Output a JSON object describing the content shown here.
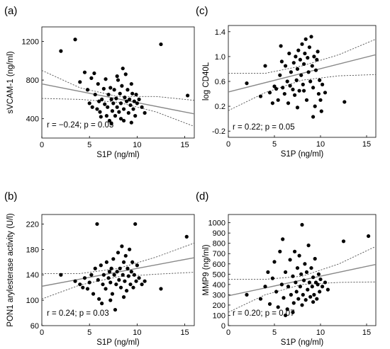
{
  "chart_data": [
    {
      "panel": "(a)",
      "type": "scatter",
      "xlabel": "S1P (ng/ml)",
      "ylabel": "sVCAM-1 (ng/ml)",
      "xlim": [
        0,
        16
      ],
      "ylim": [
        200,
        1350
      ],
      "xticks": [
        "0",
        "5",
        "10",
        "15"
      ],
      "yticks": [
        "400",
        "800",
        "1200"
      ],
      "annotation": "r = −0.24; p = 0.03",
      "fit": {
        "x": [
          0,
          16
        ],
        "y": [
          760,
          450
        ]
      },
      "ci_upper": {
        "x": [
          0,
          4,
          8,
          12,
          16
        ],
        "y": [
          900,
          720,
          630,
          630,
          590
        ]
      },
      "ci_lower": {
        "x": [
          0,
          4,
          8,
          12,
          16
        ],
        "y": [
          610,
          600,
          570,
          470,
          320
        ]
      },
      "points": [
        [
          2.0,
          1100
        ],
        [
          3.5,
          1220
        ],
        [
          12.5,
          1170
        ],
        [
          15.3,
          640
        ],
        [
          4.0,
          780
        ],
        [
          4.5,
          880
        ],
        [
          4.8,
          700
        ],
        [
          5.0,
          560
        ],
        [
          5.2,
          820
        ],
        [
          5.3,
          520
        ],
        [
          5.5,
          870
        ],
        [
          5.6,
          650
        ],
        [
          5.8,
          500
        ],
        [
          6.0,
          580
        ],
        [
          6.1,
          470
        ],
        [
          6.3,
          600
        ],
        [
          6.5,
          710
        ],
        [
          6.6,
          550
        ],
        [
          6.8,
          430
        ],
        [
          6.9,
          520
        ],
        [
          7.0,
          650
        ],
        [
          7.1,
          380
        ],
        [
          7.2,
          720
        ],
        [
          7.3,
          600
        ],
        [
          7.4,
          480
        ],
        [
          7.5,
          560
        ],
        [
          7.6,
          700
        ],
        [
          7.7,
          430
        ],
        [
          7.8,
          610
        ],
        [
          7.9,
          520
        ],
        [
          8.0,
          800
        ],
        [
          8.1,
          470
        ],
        [
          8.2,
          660
        ],
        [
          8.3,
          560
        ],
        [
          8.4,
          740
        ],
        [
          8.5,
          920
        ],
        [
          8.6,
          500
        ],
        [
          8.7,
          620
        ],
        [
          8.8,
          860
        ],
        [
          8.9,
          580
        ],
        [
          9.0,
          700
        ],
        [
          9.1,
          460
        ],
        [
          9.2,
          600
        ],
        [
          9.3,
          540
        ],
        [
          9.4,
          760
        ],
        [
          9.5,
          660
        ],
        [
          9.6,
          500
        ],
        [
          9.7,
          580
        ],
        [
          9.8,
          430
        ],
        [
          9.9,
          650
        ],
        [
          10.0,
          560
        ],
        [
          10.2,
          600
        ],
        [
          10.5,
          520
        ],
        [
          10.8,
          460
        ],
        [
          6.2,
          420
        ],
        [
          7.3,
          350
        ],
        [
          8.6,
          380
        ],
        [
          9.4,
          360
        ],
        [
          5.9,
          760
        ],
        [
          6.7,
          810
        ],
        [
          7.9,
          840
        ],
        [
          8.3,
          400
        ]
      ]
    },
    {
      "panel": "(c)",
      "type": "scatter",
      "xlabel": "S1P (ng/ml)",
      "ylabel": "log CD40L",
      "xlim": [
        0,
        16
      ],
      "ylim": [
        -0.3,
        1.5
      ],
      "xticks": [
        "0",
        "5",
        "10",
        "15"
      ],
      "yticks": [
        "-0.2",
        "0.2",
        "0.6",
        "1.0",
        "1.4"
      ],
      "annotation": "r = 0.22; p = 0.05",
      "fit": {
        "x": [
          0,
          16
        ],
        "y": [
          0.43,
          1.03
        ]
      },
      "ci_upper": {
        "x": [
          0,
          4,
          8,
          12,
          16
        ],
        "y": [
          0.73,
          0.73,
          0.85,
          1.03,
          1.28
        ]
      },
      "ci_lower": {
        "x": [
          0,
          4,
          8,
          12,
          16
        ],
        "y": [
          0.13,
          0.42,
          0.62,
          0.69,
          0.71
        ]
      },
      "points": [
        [
          2.0,
          0.57
        ],
        [
          3.5,
          0.36
        ],
        [
          4.0,
          0.85
        ],
        [
          4.5,
          0.42
        ],
        [
          4.8,
          0.25
        ],
        [
          5.0,
          0.52
        ],
        [
          5.2,
          0.48
        ],
        [
          5.4,
          0.3
        ],
        [
          5.6,
          0.7
        ],
        [
          5.7,
          1.17
        ],
        [
          5.9,
          0.5
        ],
        [
          6.1,
          0.4
        ],
        [
          6.2,
          0.85
        ],
        [
          6.4,
          0.6
        ],
        [
          6.5,
          0.25
        ],
        [
          6.7,
          0.53
        ],
        [
          6.8,
          0.75
        ],
        [
          7.0,
          0.47
        ],
        [
          7.1,
          0.9
        ],
        [
          7.2,
          0.38
        ],
        [
          7.3,
          1.0
        ],
        [
          7.4,
          0.62
        ],
        [
          7.5,
          0.8
        ],
        [
          7.6,
          1.1
        ],
        [
          7.7,
          0.45
        ],
        [
          7.8,
          0.95
        ],
        [
          7.9,
          0.7
        ],
        [
          8.0,
          1.2
        ],
        [
          8.1,
          0.55
        ],
        [
          8.2,
          0.88
        ],
        [
          8.3,
          1.05
        ],
        [
          8.4,
          1.28
        ],
        [
          8.5,
          0.3
        ],
        [
          8.6,
          0.98
        ],
        [
          8.7,
          0.75
        ],
        [
          8.8,
          1.15
        ],
        [
          8.9,
          0.6
        ],
        [
          9.0,
          1.32
        ],
        [
          9.1,
          0.85
        ],
        [
          9.2,
          0.5
        ],
        [
          9.3,
          1.0
        ],
        [
          9.4,
          0.2
        ],
        [
          9.5,
          0.78
        ],
        [
          9.6,
          0.95
        ],
        [
          9.7,
          1.08
        ],
        [
          9.8,
          0.4
        ],
        [
          9.9,
          0.62
        ],
        [
          10.0,
          0.3
        ],
        [
          10.2,
          0.55
        ],
        [
          10.5,
          0.42
        ],
        [
          12.6,
          0.27
        ],
        [
          9.2,
          0.03
        ],
        [
          5.8,
          0.92
        ],
        [
          6.6,
          1.05
        ],
        [
          7.5,
          0.18
        ],
        [
          8.2,
          0.45
        ],
        [
          10.1,
          0.12
        ]
      ]
    },
    {
      "panel": "(b)",
      "type": "scatter",
      "xlabel": "S1P (ng/ml)",
      "ylabel": "PON1 arylesterase activity (U/l)",
      "xlim": [
        0,
        16
      ],
      "ylim": [
        60,
        235
      ],
      "xticks": [
        "0",
        "5",
        "10",
        "15"
      ],
      "yticks": [
        "60",
        "100",
        "140",
        "180",
        "220"
      ],
      "annotation": "r = 0.24; p = 0.03",
      "fit": {
        "x": [
          0,
          16
        ],
        "y": [
          122,
          167
        ]
      },
      "ci_upper": {
        "x": [
          0,
          4,
          8,
          12,
          16
        ],
        "y": [
          142,
          142,
          150,
          168,
          190
        ]
      },
      "ci_lower": {
        "x": [
          0,
          4,
          8,
          12,
          16
        ],
        "y": [
          102,
          124,
          137,
          141,
          144
        ]
      },
      "points": [
        [
          2.0,
          140
        ],
        [
          3.5,
          130
        ],
        [
          4.0,
          125
        ],
        [
          4.3,
          120
        ],
        [
          4.5,
          135
        ],
        [
          4.8,
          118
        ],
        [
          5.0,
          128
        ],
        [
          5.2,
          140
        ],
        [
          5.4,
          110
        ],
        [
          5.6,
          150
        ],
        [
          5.8,
          220
        ],
        [
          5.9,
          132
        ],
        [
          6.0,
          102
        ],
        [
          6.2,
          155
        ],
        [
          6.4,
          125
        ],
        [
          6.5,
          140
        ],
        [
          6.7,
          118
        ],
        [
          6.8,
          160
        ],
        [
          7.0,
          135
        ],
        [
          7.1,
          145
        ],
        [
          7.2,
          128
        ],
        [
          7.3,
          150
        ],
        [
          7.4,
          110
        ],
        [
          7.5,
          165
        ],
        [
          7.6,
          140
        ],
        [
          7.7,
          85
        ],
        [
          7.8,
          125
        ],
        [
          7.9,
          145
        ],
        [
          8.0,
          175
        ],
        [
          8.1,
          132
        ],
        [
          8.2,
          150
        ],
        [
          8.3,
          120
        ],
        [
          8.4,
          185
        ],
        [
          8.5,
          140
        ],
        [
          8.6,
          160
        ],
        [
          8.7,
          130
        ],
        [
          8.8,
          170
        ],
        [
          8.9,
          115
        ],
        [
          9.0,
          150
        ],
        [
          9.1,
          138
        ],
        [
          9.2,
          180
        ],
        [
          9.3,
          125
        ],
        [
          9.4,
          145
        ],
        [
          9.5,
          160
        ],
        [
          9.6,
          120
        ],
        [
          9.7,
          140
        ],
        [
          9.8,
          220
        ],
        [
          9.9,
          130
        ],
        [
          10.0,
          155
        ],
        [
          10.2,
          135
        ],
        [
          10.5,
          125
        ],
        [
          10.8,
          130
        ],
        [
          12.5,
          118
        ],
        [
          15.2,
          200
        ],
        [
          6.3,
          95
        ],
        [
          7.2,
          100
        ],
        [
          8.6,
          105
        ]
      ]
    },
    {
      "panel": "(d)",
      "type": "scatter",
      "xlabel": "S1P (ng/ml)",
      "ylabel": "MMP9 (ng/ml)",
      "xlim": [
        0,
        16
      ],
      "ylim": [
        0,
        1080
      ],
      "xticks": [
        "0",
        "5",
        "10",
        "15"
      ],
      "yticks": [
        "0",
        "100",
        "200",
        "300",
        "400",
        "500",
        "600",
        "700",
        "800",
        "900",
        "1000"
      ],
      "annotation": "r = 0.20; p = 0.07",
      "fit": {
        "x": [
          0,
          16
        ],
        "y": [
          290,
          595
        ]
      },
      "ci_upper": {
        "x": [
          0,
          4,
          8,
          12,
          16
        ],
        "y": [
          450,
          450,
          480,
          600,
          770
        ]
      },
      "ci_lower": {
        "x": [
          0,
          4,
          8,
          12,
          16
        ],
        "y": [
          130,
          300,
          400,
          420,
          425
        ]
      },
      "points": [
        [
          2.0,
          300
        ],
        [
          3.5,
          260
        ],
        [
          4.0,
          380
        ],
        [
          4.3,
          520
        ],
        [
          4.5,
          210
        ],
        [
          4.8,
          460
        ],
        [
          5.0,
          620
        ],
        [
          5.2,
          330
        ],
        [
          5.4,
          180
        ],
        [
          5.6,
          720
        ],
        [
          5.8,
          400
        ],
        [
          5.9,
          840
        ],
        [
          6.0,
          270
        ],
        [
          6.2,
          520
        ],
        [
          6.4,
          160
        ],
        [
          6.5,
          380
        ],
        [
          6.7,
          640
        ],
        [
          6.8,
          300
        ],
        [
          7.0,
          480
        ],
        [
          7.1,
          220
        ],
        [
          7.2,
          720
        ],
        [
          7.3,
          420
        ],
        [
          7.4,
          330
        ],
        [
          7.5,
          560
        ],
        [
          7.6,
          260
        ],
        [
          7.7,
          680
        ],
        [
          7.8,
          380
        ],
        [
          7.9,
          500
        ],
        [
          8.0,
          980
        ],
        [
          8.1,
          300
        ],
        [
          8.2,
          440
        ],
        [
          8.3,
          600
        ],
        [
          8.4,
          250
        ],
        [
          8.5,
          520
        ],
        [
          8.6,
          350
        ],
        [
          8.7,
          780
        ],
        [
          8.8,
          420
        ],
        [
          8.9,
          280
        ],
        [
          9.0,
          560
        ],
        [
          9.1,
          380
        ],
        [
          9.2,
          470
        ],
        [
          9.3,
          300
        ],
        [
          9.4,
          650
        ],
        [
          9.5,
          420
        ],
        [
          9.6,
          260
        ],
        [
          9.7,
          400
        ],
        [
          9.8,
          500
        ],
        [
          9.9,
          330
        ],
        [
          10.0,
          450
        ],
        [
          10.2,
          380
        ],
        [
          10.5,
          420
        ],
        [
          10.8,
          350
        ],
        [
          12.5,
          820
        ],
        [
          15.2,
          870
        ],
        [
          6.2,
          100
        ],
        [
          7.0,
          130
        ],
        [
          8.0,
          200
        ],
        [
          9.2,
          230
        ]
      ]
    }
  ]
}
